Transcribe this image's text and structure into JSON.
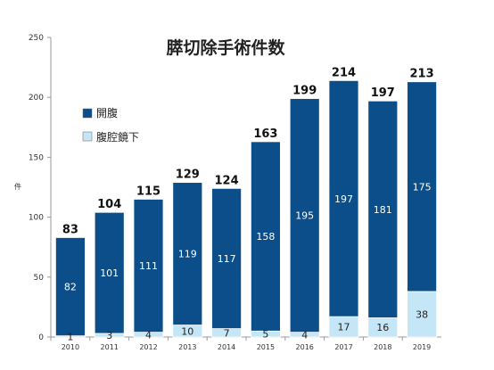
{
  "chart_data": {
    "type": "bar",
    "stacked": true,
    "title": "膵切除手術件数",
    "xlabel": "",
    "ylabel": "件",
    "ylim": [
      0,
      250
    ],
    "yticks": [
      0,
      50,
      100,
      150,
      200,
      250
    ],
    "grid": false,
    "legend_position": "upper-left",
    "categories": [
      "2010",
      "2011",
      "2012",
      "2013",
      "2014",
      "2015",
      "2016",
      "2017",
      "2018",
      "2019"
    ],
    "series": [
      {
        "name": "腹腔鏡下",
        "color": "#c5e6f7",
        "values": [
          1,
          3,
          4,
          10,
          7,
          5,
          4,
          17,
          16,
          38
        ]
      },
      {
        "name": "開腹",
        "color": "#0b4e89",
        "values": [
          82,
          101,
          111,
          119,
          117,
          158,
          195,
          197,
          181,
          175
        ]
      }
    ],
    "totals": [
      83,
      104,
      115,
      129,
      124,
      163,
      199,
      214,
      197,
      213
    ],
    "legend_order": [
      "開腹",
      "腹腔鏡下"
    ],
    "colors": {
      "axis": "#999999",
      "label_dark": "#222222",
      "label_light": "#ffffff"
    }
  }
}
